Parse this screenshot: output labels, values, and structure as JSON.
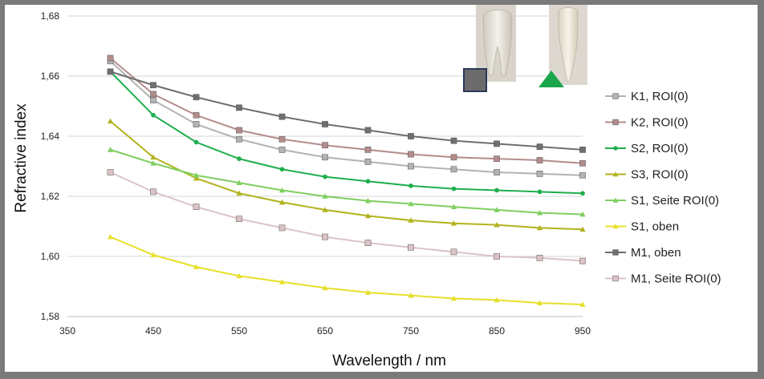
{
  "chart_data": {
    "type": "line",
    "xlabel": "Wavelength / nm",
    "ylabel": "Refractive index",
    "xlim": [
      350,
      950
    ],
    "ylim": [
      1.58,
      1.68
    ],
    "x_ticks": [
      "350",
      "450",
      "550",
      "650",
      "750",
      "850",
      "950"
    ],
    "y_ticks": [
      "1,58",
      "1,60",
      "1,62",
      "1,64",
      "1,66",
      "1,68"
    ],
    "grid": "horizontal",
    "legend_position": "right",
    "x": [
      400,
      450,
      500,
      550,
      600,
      650,
      700,
      750,
      800,
      850,
      900,
      950
    ],
    "series": [
      {
        "name": "K1, ROI(0)",
        "color": "#b3b3b3",
        "marker": "square",
        "values": [
          1.665,
          1.652,
          1.644,
          1.639,
          1.6355,
          1.633,
          1.6315,
          1.63,
          1.629,
          1.628,
          1.6275,
          1.627
        ]
      },
      {
        "name": "K2, ROI(0)",
        "color": "#b48c8c",
        "marker": "square",
        "values": [
          1.666,
          1.654,
          1.647,
          1.642,
          1.639,
          1.637,
          1.6355,
          1.634,
          1.633,
          1.6325,
          1.632,
          1.631
        ]
      },
      {
        "name": "S2, ROI(0)",
        "color": "#1fae4e",
        "marker": "circle",
        "values": [
          1.6615,
          1.647,
          1.638,
          1.6325,
          1.629,
          1.6265,
          1.625,
          1.6235,
          1.6225,
          1.622,
          1.6215,
          1.621
        ]
      },
      {
        "name": "S3, ROI(0)",
        "color": "#b2b21e",
        "marker": "triangle",
        "values": [
          1.645,
          1.633,
          1.626,
          1.621,
          1.618,
          1.6155,
          1.6135,
          1.612,
          1.611,
          1.6105,
          1.6095,
          1.609
        ]
      },
      {
        "name": "S1, Seite ROI(0)",
        "color": "#7fcf5f",
        "marker": "triangle",
        "values": [
          1.6355,
          1.631,
          1.627,
          1.6245,
          1.622,
          1.62,
          1.6185,
          1.6175,
          1.6165,
          1.6155,
          1.6145,
          1.614
        ]
      },
      {
        "name": "S1, oben",
        "color": "#e6e02a",
        "marker": "triangle",
        "values": [
          1.6065,
          1.6005,
          1.5965,
          1.5935,
          1.5915,
          1.5895,
          1.588,
          1.587,
          1.586,
          1.5855,
          1.5845,
          1.584
        ]
      },
      {
        "name": "M1, oben",
        "color": "#6f6f6f",
        "marker": "square",
        "values": [
          1.6615,
          1.657,
          1.653,
          1.6495,
          1.6465,
          1.644,
          1.642,
          1.64,
          1.6385,
          1.6375,
          1.6365,
          1.6355
        ]
      },
      {
        "name": "M1, Seite ROI(0)",
        "color": "#dcc3c6",
        "marker": "square",
        "values": [
          1.628,
          1.6215,
          1.6165,
          1.6125,
          1.6095,
          1.6065,
          1.6045,
          1.603,
          1.6015,
          1.6,
          1.5995,
          1.5985
        ]
      }
    ]
  },
  "photos": [
    {
      "marker": "square",
      "marker_color": "#6b6b6b",
      "marker_border": "#2a3a5a"
    },
    {
      "marker": "triangle",
      "marker_color": "#1aa64a"
    }
  ]
}
